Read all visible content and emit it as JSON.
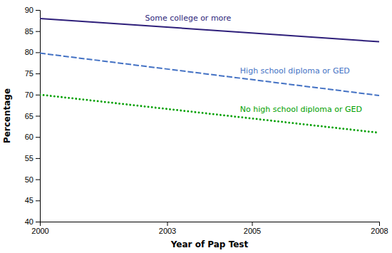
{
  "chart_data": {
    "type": "line",
    "xlabel": "Year of Pap Test",
    "ylabel": "Percentage",
    "xlim": [
      2000,
      2008
    ],
    "ylim": [
      40,
      90
    ],
    "xticks": [
      2000,
      2003,
      2005,
      2008
    ],
    "yticks": [
      40,
      45,
      50,
      55,
      60,
      65,
      70,
      75,
      80,
      85,
      90
    ],
    "grid": false,
    "series": [
      {
        "name": "Some college or more",
        "color": "#2e1f7a",
        "line_style": "solid",
        "x": [
          2000,
          2008
        ],
        "values": [
          88.0,
          82.5
        ]
      },
      {
        "name": "High school diploma or GED",
        "color": "#4472c4",
        "line_style": "dashed",
        "x": [
          2000,
          2008
        ],
        "values": [
          79.8,
          69.8
        ]
      },
      {
        "name": "No high school diploma or GED",
        "color": "#00a000",
        "line_style": "dotted",
        "x": [
          2000,
          2008
        ],
        "values": [
          70.0,
          61.0
        ]
      }
    ]
  }
}
